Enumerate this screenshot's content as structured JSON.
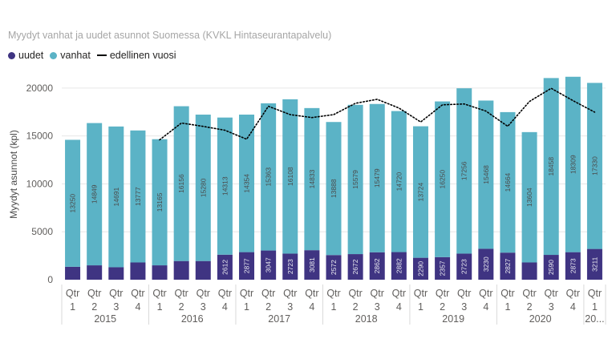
{
  "title": "Myydyt vanhat ja uudet asunnot Suomessa (KVKL Hintaseurantapalvelu)",
  "legend": {
    "uudet": "uudet",
    "vanhat": "vanhat",
    "edellinen": "edellinen vuosi"
  },
  "colors": {
    "uudet": "#3f3482",
    "vanhat": "#5bb3c6",
    "line": "#000000",
    "grid": "#e6e6e6",
    "text": "#605e5c",
    "label": "#4a4a4a"
  },
  "chart_data": {
    "type": "bar",
    "stacked": true,
    "title": "Myydyt vanhat ja uudet asunnot Suomessa (KVKL Hintaseurantapalvelu)",
    "ylabel": "Myydyt asunnot (kpl)",
    "xlabel": "",
    "ylim": [
      0,
      22000
    ],
    "yticks": [
      0,
      5000,
      10000,
      15000,
      20000
    ],
    "ytick_labels": [
      "0",
      "5000",
      "10000",
      "15000",
      "20000"
    ],
    "grid": true,
    "legend_position": "top-left",
    "quarter_prefix": "Qtr",
    "categories": [
      "1",
      "2",
      "3",
      "4",
      "1",
      "2",
      "3",
      "4",
      "1",
      "2",
      "3",
      "4",
      "1",
      "2",
      "3",
      "4",
      "1",
      "2",
      "3",
      "4",
      "1",
      "2",
      "3",
      "4",
      "1"
    ],
    "years": [
      {
        "label": "2015",
        "count": 4
      },
      {
        "label": "2016",
        "count": 4
      },
      {
        "label": "2017",
        "count": 4
      },
      {
        "label": "2018",
        "count": 4
      },
      {
        "label": "2019",
        "count": 4
      },
      {
        "label": "2020",
        "count": 4
      },
      {
        "label": "20...",
        "count": 1
      }
    ],
    "series": [
      {
        "name": "uudet",
        "values": [
          1350,
          1500,
          1300,
          1800,
          1500,
          1950,
          1950,
          2612,
          2877,
          3047,
          2723,
          3081,
          2572,
          2672,
          2862,
          2882,
          2290,
          2357,
          2723,
          3230,
          2827,
          1800,
          2590,
          2873,
          3211
        ],
        "labels": [
          "",
          "",
          "",
          "",
          "",
          "",
          "",
          "2612",
          "2877",
          "3047",
          "2723",
          "3081",
          "2572",
          "2672",
          "2862",
          "2882",
          "2290",
          "2357",
          "2723",
          "3230",
          "2827",
          "",
          "2590",
          "2873",
          "3211"
        ]
      },
      {
        "name": "vanhat",
        "values": [
          13250,
          14849,
          14691,
          13777,
          13165,
          16156,
          15280,
          14313,
          14354,
          15363,
          16108,
          14833,
          13888,
          15579,
          15479,
          14720,
          13724,
          16250,
          17256,
          15468,
          14664,
          13604,
          18458,
          18309,
          17330
        ],
        "labels": [
          "13250",
          "14849",
          "14691",
          "13777",
          "13165",
          "16156",
          "15280",
          "14313",
          "14354",
          "15363",
          "16108",
          "14833",
          "13888",
          "15579",
          "15479",
          "14720",
          "13724",
          "16250",
          "17256",
          "15468",
          "14664",
          "13604",
          "18458",
          "18309",
          "17330"
        ]
      },
      {
        "name": "edellinen vuosi",
        "type": "line",
        "style": "dotted",
        "values": [
          null,
          null,
          null,
          null,
          14600,
          16350,
          16000,
          15600,
          14665,
          18106,
          17230,
          16925,
          17231,
          18410,
          18831,
          17914,
          16460,
          18251,
          18341,
          17602,
          16014,
          18607,
          19979,
          18698,
          17491
        ]
      }
    ]
  }
}
